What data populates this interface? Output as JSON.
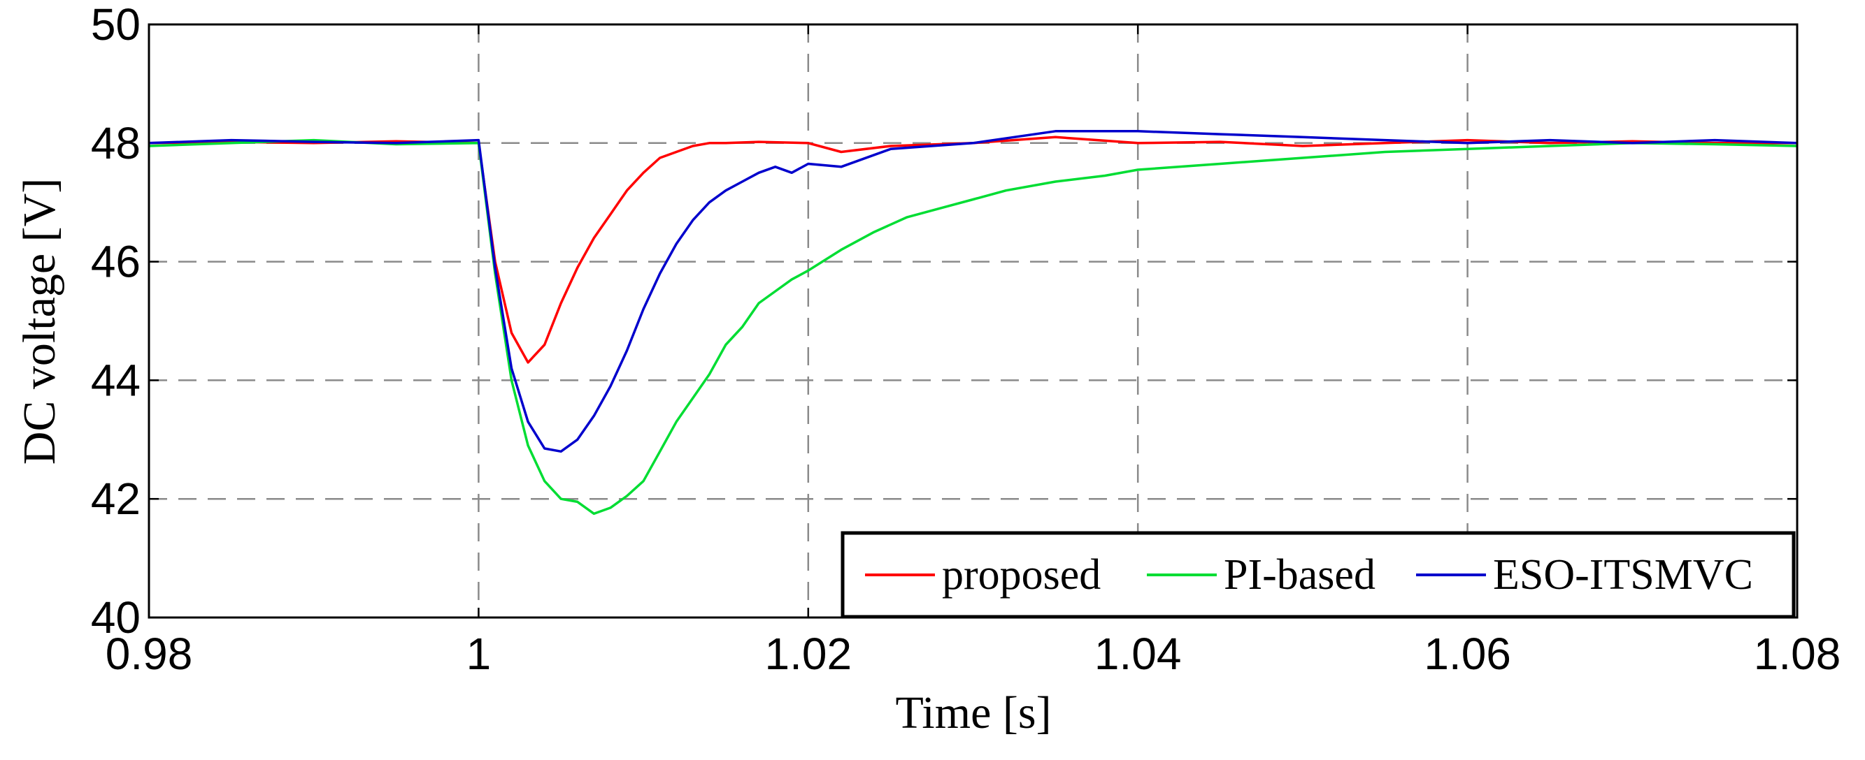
{
  "chart_data": {
    "type": "line",
    "title": "",
    "xlabel": "Time [s]",
    "ylabel": "DC voltage [V]",
    "xlim": [
      0.98,
      1.08
    ],
    "ylim": [
      40,
      50
    ],
    "xticks": [
      "0.98",
      "1",
      "1.02",
      "1.04",
      "1.06",
      "1.08"
    ],
    "yticks": [
      "40",
      "42",
      "44",
      "46",
      "48",
      "50"
    ],
    "grid": true,
    "legend_position": "bottom-right",
    "series": [
      {
        "name": "proposed",
        "color": "#ff0000",
        "x": [
          0.98,
          0.985,
          0.99,
          0.995,
          1.0,
          1.001,
          1.002,
          1.003,
          1.004,
          1.005,
          1.006,
          1.007,
          1.008,
          1.009,
          1.01,
          1.011,
          1.012,
          1.013,
          1.014,
          1.015,
          1.017,
          1.02,
          1.022,
          1.025,
          1.03,
          1.035,
          1.04,
          1.045,
          1.05,
          1.055,
          1.06,
          1.065,
          1.07,
          1.075,
          1.08
        ],
        "y": [
          48.0,
          48.02,
          48.0,
          48.03,
          48.0,
          46.0,
          44.8,
          44.3,
          44.6,
          45.3,
          45.9,
          46.4,
          46.8,
          47.2,
          47.5,
          47.75,
          47.85,
          47.95,
          48.0,
          48.0,
          48.02,
          48.0,
          47.85,
          47.95,
          48.0,
          48.1,
          48.0,
          48.02,
          47.95,
          48.0,
          48.05,
          48.0,
          48.03,
          48.0,
          48.0
        ]
      },
      {
        "name": "PI-based",
        "color": "#00dd33",
        "x": [
          0.98,
          0.985,
          0.99,
          0.995,
          1.0,
          1.001,
          1.002,
          1.003,
          1.004,
          1.005,
          1.006,
          1.007,
          1.008,
          1.009,
          1.01,
          1.011,
          1.012,
          1.013,
          1.014,
          1.015,
          1.016,
          1.017,
          1.018,
          1.019,
          1.02,
          1.022,
          1.024,
          1.026,
          1.028,
          1.03,
          1.032,
          1.035,
          1.038,
          1.04,
          1.045,
          1.05,
          1.055,
          1.06,
          1.065,
          1.07,
          1.075,
          1.08
        ],
        "y": [
          47.95,
          48.0,
          48.05,
          47.98,
          48.0,
          45.8,
          44.0,
          42.9,
          42.3,
          42.0,
          41.95,
          41.75,
          41.85,
          42.05,
          42.3,
          42.8,
          43.3,
          43.7,
          44.1,
          44.6,
          44.9,
          45.3,
          45.5,
          45.7,
          45.85,
          46.2,
          46.5,
          46.75,
          46.9,
          47.05,
          47.2,
          47.35,
          47.45,
          47.55,
          47.65,
          47.75,
          47.85,
          47.9,
          47.95,
          48.0,
          47.98,
          47.95
        ]
      },
      {
        "name": "ESO-ITSMVC",
        "color": "#0000cc",
        "x": [
          0.98,
          0.985,
          0.99,
          0.995,
          1.0,
          1.001,
          1.002,
          1.003,
          1.004,
          1.005,
          1.006,
          1.007,
          1.008,
          1.009,
          1.01,
          1.011,
          1.012,
          1.013,
          1.014,
          1.015,
          1.016,
          1.017,
          1.018,
          1.019,
          1.02,
          1.022,
          1.025,
          1.03,
          1.035,
          1.04,
          1.045,
          1.05,
          1.055,
          1.06,
          1.065,
          1.07,
          1.075,
          1.08
        ],
        "y": [
          48.0,
          48.05,
          48.02,
          48.0,
          48.05,
          45.9,
          44.2,
          43.3,
          42.85,
          42.8,
          43.0,
          43.4,
          43.9,
          44.5,
          45.2,
          45.8,
          46.3,
          46.7,
          47.0,
          47.2,
          47.35,
          47.5,
          47.6,
          47.5,
          47.65,
          47.6,
          47.9,
          48.0,
          48.2,
          48.2,
          48.15,
          48.1,
          48.05,
          48.0,
          48.05,
          48.0,
          48.05,
          48.0
        ]
      }
    ]
  }
}
